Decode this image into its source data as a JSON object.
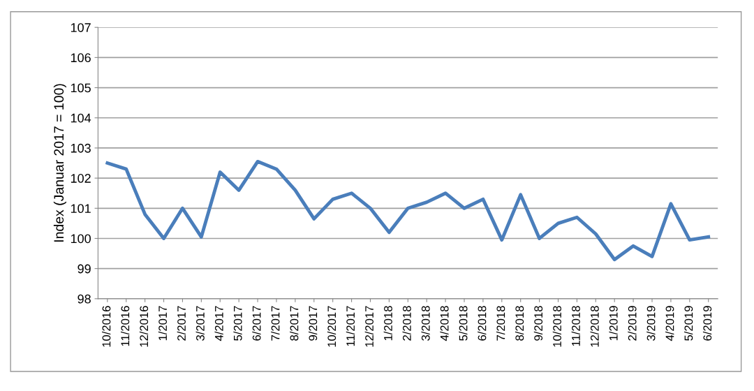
{
  "chart_data": {
    "type": "line",
    "ylabel": "Index (Januar 2017 = 100)",
    "categories": [
      "10/2016",
      "11/2016",
      "12/2016",
      "1/2017",
      "2/2017",
      "3/2017",
      "4/2017",
      "5/2017",
      "6/2017",
      "7/2017",
      "8/2017",
      "9/2017",
      "10/2017",
      "11/2017",
      "12/2017",
      "1/2018",
      "2/2018",
      "3/2018",
      "4/2018",
      "5/2018",
      "6/2018",
      "7/2018",
      "8/2018",
      "9/2018",
      "10/2018",
      "11/2018",
      "12/2018",
      "1/2019",
      "2/2019",
      "3/2019",
      "4/2019",
      "5/2019",
      "6/2019"
    ],
    "series": [
      {
        "color": "#4a7ebb",
        "values": [
          102.5,
          102.3,
          100.8,
          100.0,
          101.0,
          100.05,
          102.2,
          101.6,
          102.55,
          102.3,
          101.6,
          100.65,
          101.3,
          101.5,
          101.0,
          100.2,
          101.0,
          101.2,
          101.5,
          101.0,
          101.3,
          99.95,
          101.45,
          100.0,
          100.5,
          100.7,
          100.15,
          99.3,
          99.75,
          99.4,
          101.15,
          99.95,
          100.05
        ]
      }
    ],
    "ylim": [
      98,
      107
    ],
    "yticks": [
      98,
      99,
      100,
      101,
      102,
      103,
      104,
      105,
      106,
      107
    ],
    "grid": "y",
    "legend": false,
    "marker": "none",
    "line_style": "solid"
  }
}
